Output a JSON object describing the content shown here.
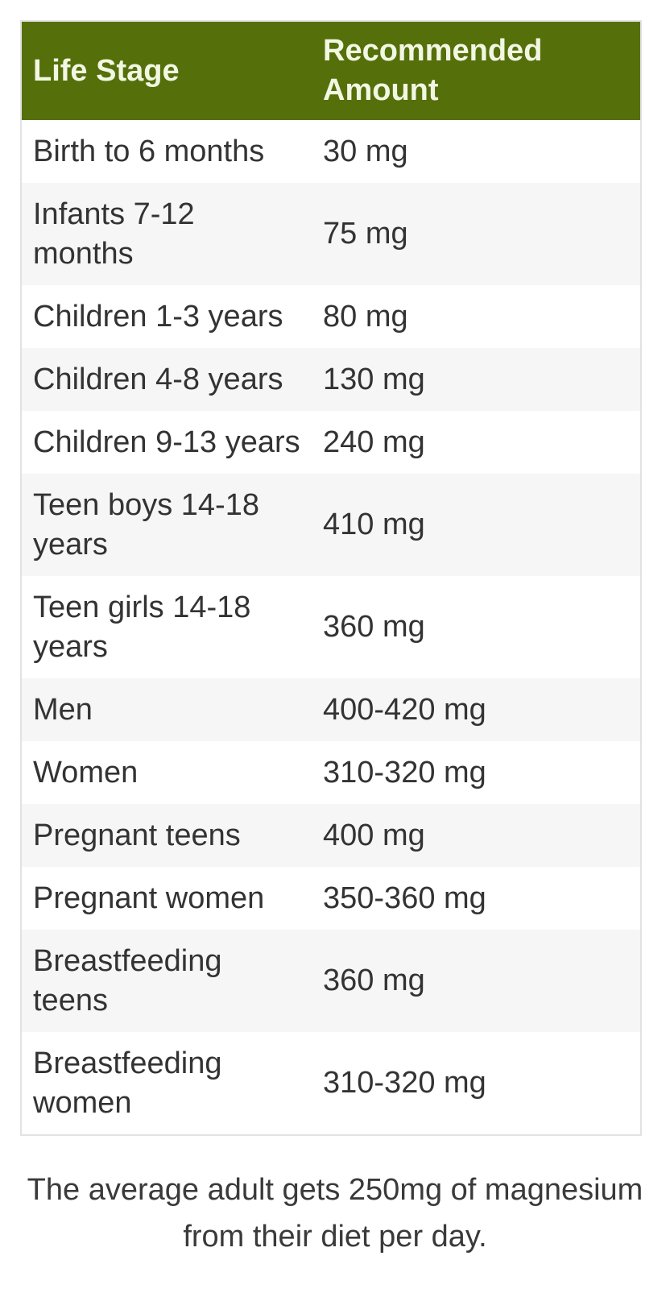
{
  "table": {
    "headers": {
      "stage": "Life Stage",
      "amount": "Recommended Amount"
    },
    "rows": [
      {
        "stage": "Birth to 6 months",
        "amount": "30 mg"
      },
      {
        "stage": "Infants 7-12 months",
        "amount": "75 mg"
      },
      {
        "stage": "Children 1-3 years",
        "amount": "80 mg"
      },
      {
        "stage": "Children 4-8 years",
        "amount": "130 mg"
      },
      {
        "stage": "Children 9-13 years",
        "amount": "240 mg"
      },
      {
        "stage": "Teen boys 14-18 years",
        "amount": "410 mg"
      },
      {
        "stage": "Teen girls 14-18 years",
        "amount": "360 mg"
      },
      {
        "stage": "Men",
        "amount": "400-420 mg"
      },
      {
        "stage": "Women",
        "amount": "310-320 mg"
      },
      {
        "stage": "Pregnant teens",
        "amount": "400 mg"
      },
      {
        "stage": "Pregnant women",
        "amount": "350-360 mg"
      },
      {
        "stage": "Breastfeeding teens",
        "amount": "360 mg"
      },
      {
        "stage": "Breastfeeding women",
        "amount": "310-320 mg"
      }
    ]
  },
  "caption": "The average adult gets 250mg of magnesium from their diet per day.",
  "colors": {
    "header_background": "#556f0a",
    "header_text": "#f2f7e3",
    "body_text": "#333333",
    "zebra_row": "#f6f6f6",
    "table_border": "#e2e2e2"
  }
}
